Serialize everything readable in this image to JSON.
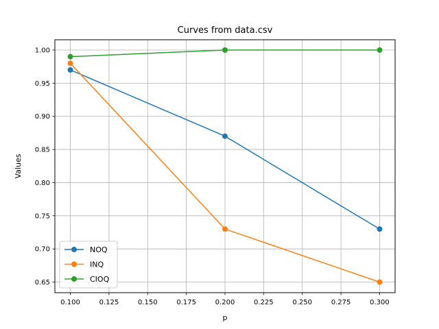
{
  "chart_data": {
    "type": "line",
    "title": "Curves from data.csv",
    "xlabel": "p",
    "ylabel": "Values",
    "x": [
      0.1,
      0.2,
      0.3
    ],
    "xlim": [
      0.09,
      0.31
    ],
    "ylim": [
      0.634,
      1.0155
    ],
    "xticks": [
      "0.100",
      "0.125",
      "0.150",
      "0.175",
      "0.200",
      "0.225",
      "0.250",
      "0.275",
      "0.300"
    ],
    "yticks": [
      "0.65",
      "0.70",
      "0.75",
      "0.80",
      "0.85",
      "0.90",
      "0.95",
      "1.00"
    ],
    "grid": true,
    "legend_position": "lower-left",
    "series": [
      {
        "name": "NOQ",
        "color": "#1f77b4",
        "values": [
          0.97,
          0.87,
          0.73
        ]
      },
      {
        "name": "INQ",
        "color": "#ff7f0e",
        "values": [
          0.98,
          0.73,
          0.65
        ]
      },
      {
        "name": "CIOQ",
        "color": "#2ca02c",
        "values": [
          0.99,
          1.0,
          1.0
        ]
      }
    ]
  }
}
